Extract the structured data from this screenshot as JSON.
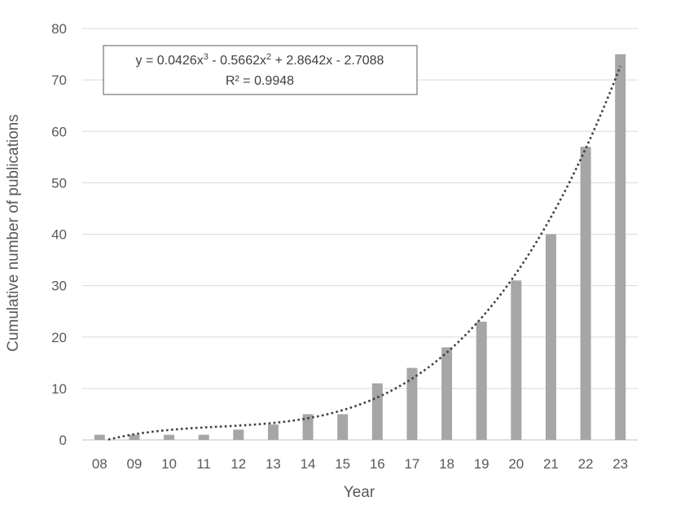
{
  "chart_data": {
    "type": "bar",
    "xlabel": "Year",
    "ylabel": "Cumulative number of publications",
    "categories": [
      "08",
      "09",
      "10",
      "11",
      "12",
      "13",
      "14",
      "15",
      "16",
      "17",
      "18",
      "19",
      "20",
      "21",
      "22",
      "23"
    ],
    "values": [
      1,
      1,
      1,
      1,
      2,
      3,
      5,
      5,
      11,
      14,
      18,
      23,
      31,
      40,
      57,
      75
    ],
    "ylim": [
      0,
      80
    ],
    "yticks": [
      "0",
      "10",
      "20",
      "30",
      "40",
      "50",
      "60",
      "70",
      "80"
    ],
    "grid": true,
    "bar_color": "#a6a6a6",
    "trendline": {
      "type": "polynomial",
      "order": 3,
      "coefficients": [
        0.0426,
        -0.5662,
        2.8642,
        -2.7088
      ],
      "style": "dotted",
      "color": "#404040",
      "equation": {
        "y_part": "y = 0.0426x",
        "sup1": "3",
        "mid_part": " - 0.5662x",
        "sup2": "2",
        "tail": " + 2.8642x - 2.7088"
      },
      "r2": "R² = 0.9948"
    }
  }
}
